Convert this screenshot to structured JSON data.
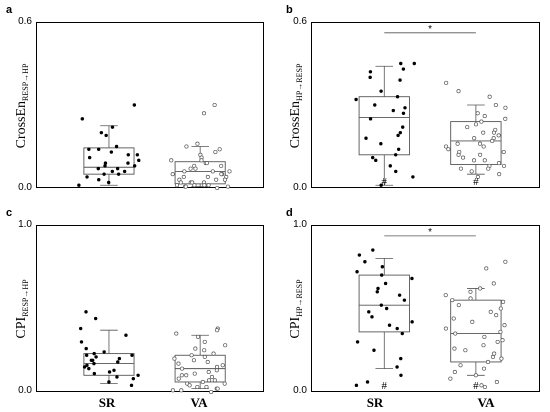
{
  "panels": {
    "a": {
      "letter": "a",
      "ylabel_main": "CrossEn",
      "ylabel_sub": "RESP→HP",
      "tick_min": "0.0",
      "tick_max": "0.6",
      "ylim": [
        0,
        0.6
      ]
    },
    "b": {
      "letter": "b",
      "ylabel_main": "CrossEn",
      "ylabel_sub": "HP→RESP",
      "tick_min": "0.0",
      "tick_max": "0.6",
      "ylim": [
        0,
        0.6
      ],
      "significance": "*",
      "hash": "#"
    },
    "c": {
      "letter": "c",
      "ylabel_main": "CPI",
      "ylabel_sub": "RESP→HP",
      "tick_min": "0.0",
      "tick_max": "1.0",
      "ylim": [
        0,
        1.0
      ]
    },
    "d": {
      "letter": "d",
      "ylabel_main": "CPI",
      "ylabel_sub": "HP→RESP",
      "tick_min": "0.0",
      "tick_max": "1.0",
      "ylim": [
        0,
        1.0
      ],
      "significance": "*",
      "hash": "#"
    }
  },
  "xlabels": [
    "SR",
    "VA"
  ],
  "chart_data": [
    {
      "type": "box",
      "panel": "a",
      "ylim": [
        0,
        0.6
      ],
      "groups": [
        {
          "label": "SR",
          "marker": "filled",
          "box": {
            "whisker_low": 0.01,
            "q1": 0.05,
            "median": 0.075,
            "q3": 0.145,
            "whisker_high": 0.225
          },
          "points": [
            0.3,
            0.25,
            0.22,
            0.2,
            0.19,
            0.15,
            0.14,
            0.14,
            0.13,
            0.12,
            0.12,
            0.11,
            0.1,
            0.09,
            0.09,
            0.08,
            0.08,
            0.07,
            0.07,
            0.06,
            0.06,
            0.05,
            0.05,
            0.04,
            0.03,
            0.02,
            0.01
          ]
        },
        {
          "label": "VA",
          "marker": "hollow",
          "box": {
            "whisker_low": 0.005,
            "q1": 0.015,
            "median": 0.06,
            "q3": 0.095,
            "whisker_high": 0.15
          },
          "points": [
            0.3,
            0.27,
            0.16,
            0.15,
            0.14,
            0.13,
            0.12,
            0.11,
            0.1,
            0.1,
            0.09,
            0.09,
            0.08,
            0.08,
            0.07,
            0.07,
            0.06,
            0.06,
            0.06,
            0.05,
            0.05,
            0.05,
            0.04,
            0.04,
            0.04,
            0.03,
            0.03,
            0.03,
            0.02,
            0.02,
            0.02,
            0.02,
            0.01,
            0.01,
            0.01,
            0.01,
            0.005,
            0.005,
            0.005,
            0.0
          ]
        }
      ]
    },
    {
      "type": "box",
      "panel": "b",
      "ylim": [
        0,
        0.6
      ],
      "groups": [
        {
          "label": "SR",
          "marker": "filled",
          "box": {
            "whisker_low": 0.01,
            "q1": 0.12,
            "median": 0.255,
            "q3": 0.33,
            "whisker_high": 0.44
          },
          "points": [
            0.45,
            0.45,
            0.43,
            0.42,
            0.4,
            0.39,
            0.35,
            0.33,
            0.32,
            0.3,
            0.29,
            0.28,
            0.27,
            0.25,
            0.22,
            0.2,
            0.19,
            0.18,
            0.16,
            0.14,
            0.12,
            0.11,
            0.1,
            0.08,
            0.06,
            0.04,
            0.01
          ]
        },
        {
          "label": "VA",
          "marker": "hollow",
          "box": {
            "whisker_low": 0.05,
            "q1": 0.085,
            "median": 0.17,
            "q3": 0.24,
            "whisker_high": 0.3
          },
          "points": [
            0.38,
            0.35,
            0.33,
            0.3,
            0.29,
            0.27,
            0.26,
            0.25,
            0.24,
            0.23,
            0.22,
            0.21,
            0.2,
            0.2,
            0.19,
            0.18,
            0.18,
            0.17,
            0.16,
            0.16,
            0.15,
            0.15,
            0.14,
            0.13,
            0.13,
            0.12,
            0.12,
            0.11,
            0.1,
            0.1,
            0.09,
            0.08,
            0.08,
            0.07,
            0.07,
            0.06,
            0.05,
            0.04
          ]
        }
      ]
    },
    {
      "type": "box",
      "panel": "c",
      "ylim": [
        0,
        1.0
      ],
      "groups": [
        {
          "label": "SR",
          "marker": "filled",
          "box": {
            "whisker_low": 0.05,
            "q1": 0.1,
            "median": 0.17,
            "q3": 0.23,
            "whisker_high": 0.37
          },
          "points": [
            0.48,
            0.44,
            0.38,
            0.34,
            0.3,
            0.26,
            0.24,
            0.23,
            0.22,
            0.22,
            0.21,
            0.2,
            0.19,
            0.19,
            0.18,
            0.17,
            0.16,
            0.15,
            0.14,
            0.13,
            0.12,
            0.11,
            0.1,
            0.09,
            0.08,
            0.06,
            0.04
          ]
        },
        {
          "label": "VA",
          "marker": "hollow",
          "box": {
            "whisker_low": 0.02,
            "q1": 0.06,
            "median": 0.14,
            "q3": 0.22,
            "whisker_high": 0.34
          },
          "points": [
            0.38,
            0.37,
            0.35,
            0.33,
            0.3,
            0.28,
            0.26,
            0.25,
            0.23,
            0.22,
            0.21,
            0.2,
            0.19,
            0.18,
            0.17,
            0.16,
            0.15,
            0.14,
            0.13,
            0.12,
            0.11,
            0.1,
            0.1,
            0.09,
            0.08,
            0.07,
            0.07,
            0.06,
            0.05,
            0.05,
            0.04,
            0.03,
            0.03,
            0.02,
            0.02,
            0.01,
            0.01,
            0.0
          ]
        }
      ]
    },
    {
      "type": "box",
      "panel": "d",
      "ylim": [
        0,
        1.0
      ],
      "groups": [
        {
          "label": "SR",
          "marker": "filled",
          "box": {
            "whisker_low": 0.14,
            "q1": 0.36,
            "median": 0.52,
            "q3": 0.7,
            "whisker_high": 0.8
          },
          "points": [
            0.85,
            0.82,
            0.78,
            0.75,
            0.72,
            0.7,
            0.68,
            0.65,
            0.62,
            0.6,
            0.58,
            0.55,
            0.52,
            0.5,
            0.48,
            0.45,
            0.42,
            0.4,
            0.38,
            0.35,
            0.3,
            0.25,
            0.2,
            0.15,
            0.1,
            0.06,
            0.04
          ]
        },
        {
          "label": "VA",
          "marker": "hollow",
          "box": {
            "whisker_low": 0.1,
            "q1": 0.18,
            "median": 0.35,
            "q3": 0.55,
            "whisker_high": 0.62
          },
          "points": [
            0.78,
            0.74,
            0.65,
            0.62,
            0.6,
            0.58,
            0.56,
            0.55,
            0.54,
            0.52,
            0.5,
            0.48,
            0.46,
            0.44,
            0.42,
            0.4,
            0.38,
            0.36,
            0.35,
            0.33,
            0.31,
            0.3,
            0.28,
            0.26,
            0.25,
            0.23,
            0.21,
            0.2,
            0.18,
            0.16,
            0.14,
            0.12,
            0.1,
            0.08,
            0.06,
            0.04,
            0.03
          ]
        }
      ]
    }
  ]
}
